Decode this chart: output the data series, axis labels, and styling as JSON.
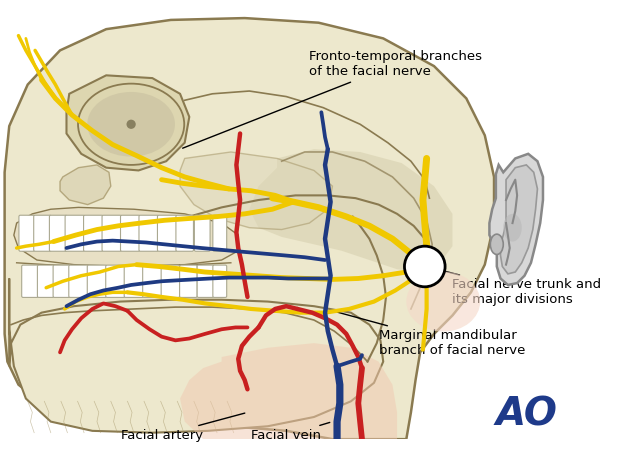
{
  "background_color": "#ffffff",
  "skull_fill": "#ede8cd",
  "skull_stroke": "#8a7a50",
  "skull_stroke2": "#a09060",
  "bone_shadow": "#ccc4a0",
  "nerve_color": "#f0c800",
  "nerve_dark": "#d4aa00",
  "artery_color": "#c82020",
  "vein_color": "#1e3a82",
  "ear_fill": "#d8d8d8",
  "ear_stroke": "#888888",
  "parotid_fill": "#f5d8c8",
  "soft_pink": "#f0c8b0",
  "annotation_color": "#000000",
  "ao_color": "#1e3a8a",
  "labels": {
    "fronto_temporal": "Fronto-temporal branches\nof the facial nerve",
    "facial_nerve_trunk": "Facial nerve trunk and\nits major divisions",
    "marginal_mandibular": "Marginal mandibular\nbranch of facial nerve",
    "facial_artery": "Facial artery",
    "facial_vein": "Facial vein"
  },
  "figsize": [
    6.2,
    4.59
  ],
  "dpi": 100
}
